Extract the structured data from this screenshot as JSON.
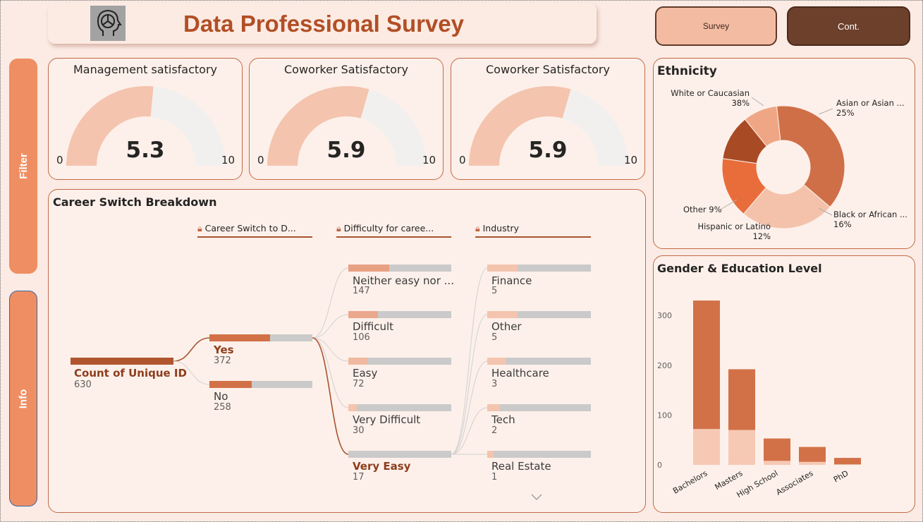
{
  "header": {
    "title": "Data Professional Survey",
    "nav": {
      "survey_label": "Survey",
      "cont_label": "Cont."
    }
  },
  "side": {
    "filter_label": "Filter",
    "info_label": "Info"
  },
  "gauges": [
    {
      "title": "Management satisfactory",
      "value": "5.3",
      "min": "0",
      "max": "10",
      "fraction": 0.53
    },
    {
      "title": "Coworker Satisfactory",
      "value": "5.9",
      "min": "0",
      "max": "10",
      "fraction": 0.59
    },
    {
      "title": "Coworker Satisfactory",
      "value": "5.9",
      "min": "0",
      "max": "10",
      "fraction": 0.59
    }
  ],
  "career": {
    "title": "Career Switch Breakdown",
    "headers": [
      "Career Switch to D...",
      "Difficulty for caree...",
      "Industry"
    ],
    "root": {
      "label": "Count of Unique ID",
      "value": "630"
    },
    "switch": [
      {
        "label": "Yes",
        "value": "372",
        "fraction": 0.59
      },
      {
        "label": "No",
        "value": "258",
        "fraction": 0.41
      }
    ],
    "difficulty": [
      {
        "label": "Neither easy nor ...",
        "value": "147",
        "fraction": 0.4
      },
      {
        "label": "Difficult",
        "value": "106",
        "fraction": 0.285
      },
      {
        "label": "Easy",
        "value": "72",
        "fraction": 0.19
      },
      {
        "label": "Very Difficult",
        "value": "30",
        "fraction": 0.08
      },
      {
        "label": "Very Easy",
        "value": "17",
        "fraction": 0.0
      }
    ],
    "industry": [
      {
        "label": "Finance",
        "value": "5",
        "fraction": 0.29
      },
      {
        "label": "Other",
        "value": "5",
        "fraction": 0.29
      },
      {
        "label": "Healthcare",
        "value": "3",
        "fraction": 0.18
      },
      {
        "label": "Tech",
        "value": "2",
        "fraction": 0.12
      },
      {
        "label": "Real Estate",
        "value": "1",
        "fraction": 0.06
      }
    ]
  },
  "ethnicity": {
    "title": "Ethnicity",
    "labels": {
      "white_name": "White or Caucasian",
      "white_pct": "38%",
      "asian_name": "Asian or Asian ...",
      "asian_pct": "25%",
      "black_name": "Black or African ...",
      "black_pct": "16%",
      "hispanic_name": "Hispanic or Latino",
      "hispanic_pct": "12%",
      "other_text": "Other 9%"
    }
  },
  "chart_data": {
    "type": "bar",
    "title": "Gender & Education Level",
    "categories": [
      "Bachelors",
      "Masters",
      "High School",
      "Associates",
      "PhD"
    ],
    "series": [
      {
        "values": [
          72,
          70,
          8,
          6,
          1
        ],
        "color": "#f6c9b5"
      },
      {
        "values": [
          258,
          122,
          45,
          30,
          13
        ],
        "color": "#d27148"
      }
    ],
    "yticks": [
      "300",
      "200",
      "100",
      "0"
    ],
    "ylim": [
      0,
      340
    ],
    "stacked": true
  },
  "donut_data": {
    "type": "pie",
    "slices": [
      {
        "name": "White or Caucasian",
        "value": 38,
        "color": "#cf6f47"
      },
      {
        "name": "Asian or Asian ...",
        "value": 25,
        "color": "#f4c2ab"
      },
      {
        "name": "Black or African ...",
        "value": 16,
        "color": "#e96d3a"
      },
      {
        "name": "Hispanic or Latino",
        "value": 12,
        "color": "#a84b25"
      },
      {
        "name": "Other",
        "value": 9,
        "color": "#efa685"
      }
    ]
  },
  "colors": {
    "accent": "#b14f26",
    "bar_dark": "#b0552e",
    "bar_fill": "#d27148",
    "bar_light": "#f4c4ae",
    "track": "#cacaca"
  }
}
